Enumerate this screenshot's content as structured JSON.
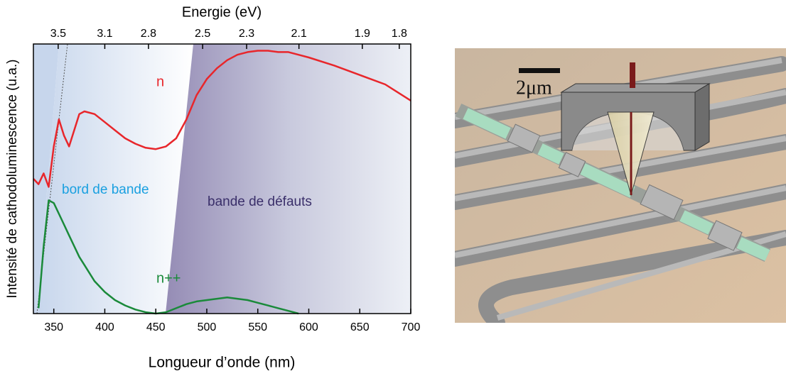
{
  "chart_data": {
    "type": "line",
    "xlabel": "Longueur d’onde (nm)",
    "x2label": "Energie (eV)",
    "ylabel": "Intensité de cathodoluminescence (u.a.)",
    "x": [
      330,
      335,
      340,
      345,
      350,
      355,
      360,
      365,
      370,
      375,
      380,
      390,
      400,
      410,
      420,
      430,
      440,
      450,
      460,
      470,
      480,
      490,
      500,
      510,
      520,
      530,
      540,
      550,
      560,
      570,
      580,
      590,
      600,
      625,
      650,
      675,
      700
    ],
    "series": [
      {
        "name": "n",
        "color": "#e8262b",
        "values": [
          0.5,
          0.48,
          0.52,
          0.47,
          0.62,
          0.72,
          0.66,
          0.62,
          0.68,
          0.74,
          0.75,
          0.74,
          0.71,
          0.68,
          0.65,
          0.63,
          0.615,
          0.61,
          0.62,
          0.65,
          0.72,
          0.81,
          0.87,
          0.91,
          0.94,
          0.96,
          0.97,
          0.975,
          0.975,
          0.97,
          0.97,
          0.96,
          0.95,
          0.92,
          0.885,
          0.85,
          0.79
        ]
      },
      {
        "name": "n++",
        "color": "#1a8a3a",
        "values": [
          null,
          0.02,
          0.25,
          0.42,
          0.41,
          0.37,
          0.33,
          0.29,
          0.25,
          0.21,
          0.18,
          0.12,
          0.08,
          0.05,
          0.03,
          0.015,
          0.005,
          0.0,
          0.005,
          0.02,
          0.035,
          0.045,
          0.05,
          0.055,
          0.06,
          0.055,
          0.05,
          0.04,
          0.03,
          0.02,
          0.01,
          0.0,
          null,
          null,
          null,
          null,
          null
        ]
      }
    ],
    "xlim": [
      330,
      700
    ],
    "xticks": [
      350,
      400,
      450,
      500,
      550,
      600,
      650,
      700
    ],
    "x2lim": [
      3.758,
      1.771
    ],
    "x2scale": "reciprocal",
    "x2ticks": [
      3.5,
      3.1,
      2.8,
      2.5,
      2.3,
      2.1,
      1.9,
      1.8
    ],
    "ylim": [
      0,
      1
    ],
    "annotations": [
      "bord de bande",
      "bande de défauts"
    ]
  },
  "image": {
    "scale_bar": "2μm"
  }
}
